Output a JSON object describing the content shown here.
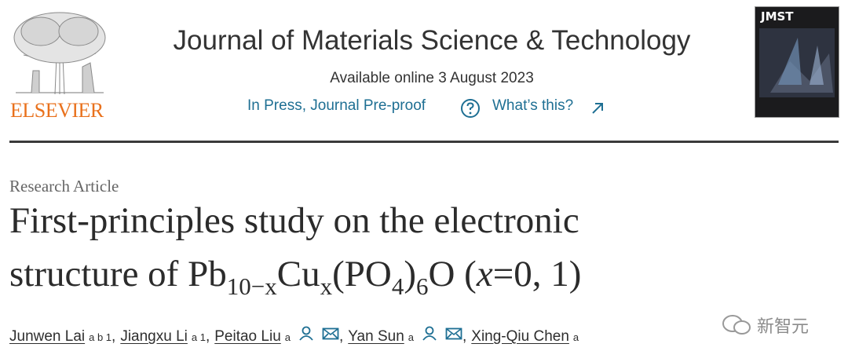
{
  "header": {
    "publisher": "ELSEVIER",
    "journal": "Journal of Materials Science & Technology",
    "available": "Available online 3 August 2023",
    "status": "In Press, Journal Pre-proof",
    "help": "What’s this?",
    "cover_title": "JMST"
  },
  "article": {
    "type": "Research Article",
    "title": [
      [
        {
          "text": "First-principles study on the electronic",
          "style": "normal"
        }
      ],
      [
        {
          "text": "structure of Pb",
          "style": "normal"
        },
        {
          "text": "10−x",
          "style": "sub"
        },
        {
          "text": "Cu",
          "style": "normal"
        },
        {
          "text": "x",
          "style": "sub"
        },
        {
          "text": "(PO",
          "style": "normal"
        },
        {
          "text": "4",
          "style": "sub"
        },
        {
          "text": ")",
          "style": "normal"
        },
        {
          "text": "6",
          "style": "sub"
        },
        {
          "text": "O (",
          "style": "normal"
        },
        {
          "text": "x",
          "style": "italic"
        },
        {
          "text": "=0, 1)",
          "style": "normal"
        }
      ]
    ],
    "authors": [
      {
        "name": "Junwen Lai",
        "affiliations": "a b 1",
        "corresponding": false,
        "separator": ","
      },
      {
        "name": "Jiangxu Li",
        "affiliations": "a 1",
        "corresponding": false,
        "separator": ","
      },
      {
        "name": "Peitao Liu",
        "affiliations": "a",
        "corresponding": true,
        "separator": ","
      },
      {
        "name": "Yan Sun",
        "affiliations": "a",
        "corresponding": true,
        "separator": ","
      },
      {
        "name": "Xing-Qiu Chen",
        "affiliations": "a",
        "corresponding": false
      }
    ]
  },
  "watermark": "新智元"
}
